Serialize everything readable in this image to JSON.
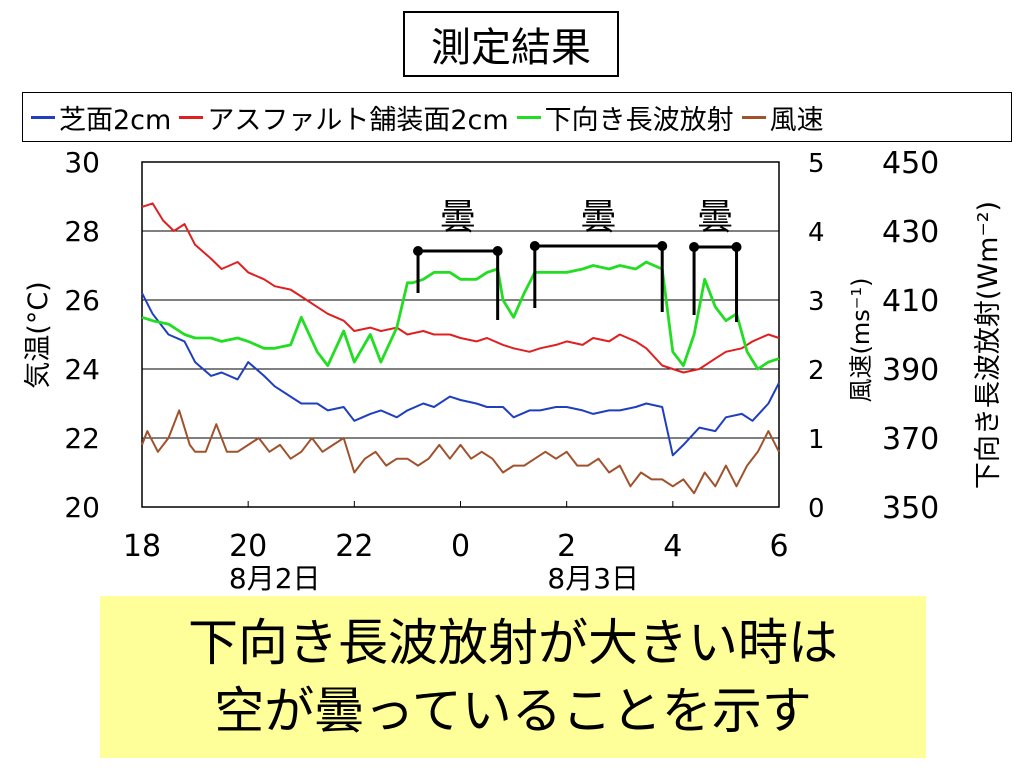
{
  "title": "測定結果",
  "legend": [
    {
      "label": "芝面2cm",
      "color": "#1f3fbf"
    },
    {
      "label": "アスファルト舗装面2cm",
      "color": "#e02020"
    },
    {
      "label": "下向き長波放射",
      "color": "#22dd22"
    },
    {
      "label": "風速",
      "color": "#a0522d"
    }
  ],
  "conclusion": {
    "line1": "下向き長波放射が大きい時は",
    "line2": "空が曇っていることを示す"
  },
  "chart_data": {
    "type": "line",
    "xlabel": "",
    "x_ticks": [
      "18",
      "20",
      "22",
      "0",
      "2",
      "4",
      "6"
    ],
    "date_labels": [
      {
        "label": "8月2日",
        "at": 20.5
      },
      {
        "label": "8月3日",
        "at": 26.5
      }
    ],
    "xlim": [
      18,
      30
    ],
    "y_left": {
      "label": "気温(°C)",
      "lim": [
        20,
        30
      ],
      "ticks": [
        "20",
        "22",
        "24",
        "26",
        "28",
        "30"
      ]
    },
    "y_wind": {
      "label": "風速(ms⁻¹)",
      "lim": [
        0,
        5
      ],
      "ticks": [
        "0",
        "1",
        "2",
        "3",
        "4",
        "5"
      ]
    },
    "y_rad": {
      "label": "下向き長波放射(Wm⁻²)",
      "lim": [
        350,
        450
      ],
      "ticks": [
        "350",
        "370",
        "390",
        "410",
        "430",
        "450"
      ]
    },
    "annotations": [
      {
        "label": "曇",
        "start": 23.2,
        "end": 24.7
      },
      {
        "label": "曇",
        "start": 25.4,
        "end": 27.8
      },
      {
        "label": "曇",
        "start": 28.4,
        "end": 29.2
      }
    ],
    "series": [
      {
        "name": "芝面2cm",
        "axis": "temp",
        "x": [
          18,
          18.2,
          18.5,
          18.8,
          19.0,
          19.3,
          19.5,
          19.8,
          20.0,
          20.3,
          20.5,
          20.8,
          21.0,
          21.3,
          21.5,
          21.8,
          22.0,
          22.3,
          22.5,
          22.8,
          23.0,
          23.3,
          23.5,
          23.8,
          24.0,
          24.3,
          24.5,
          24.8,
          25.0,
          25.3,
          25.5,
          25.8,
          26.0,
          26.3,
          26.5,
          26.8,
          27.0,
          27.3,
          27.5,
          27.8,
          28.0,
          28.2,
          28.5,
          28.8,
          29.0,
          29.3,
          29.5,
          29.8,
          30.0
        ],
        "y": [
          26.2,
          25.6,
          25.0,
          24.8,
          24.2,
          23.8,
          23.9,
          23.7,
          24.2,
          23.8,
          23.5,
          23.2,
          23.0,
          23.0,
          22.8,
          22.9,
          22.5,
          22.7,
          22.8,
          22.6,
          22.8,
          23.0,
          22.9,
          23.2,
          23.1,
          23.0,
          22.9,
          22.9,
          22.6,
          22.8,
          22.8,
          22.9,
          22.9,
          22.8,
          22.7,
          22.8,
          22.8,
          22.9,
          23.0,
          22.9,
          21.5,
          21.8,
          22.3,
          22.2,
          22.6,
          22.7,
          22.5,
          23.0,
          23.6
        ]
      },
      {
        "name": "アスファルト舗装面2cm",
        "axis": "temp",
        "x": [
          18,
          18.2,
          18.4,
          18.6,
          18.8,
          19.0,
          19.3,
          19.5,
          19.8,
          20.0,
          20.3,
          20.5,
          20.8,
          21.0,
          21.3,
          21.5,
          21.8,
          22.0,
          22.3,
          22.5,
          22.8,
          23.0,
          23.3,
          23.5,
          23.8,
          24.0,
          24.3,
          24.5,
          24.8,
          25.0,
          25.3,
          25.5,
          25.8,
          26.0,
          26.3,
          26.5,
          26.8,
          27.0,
          27.3,
          27.5,
          27.8,
          28.0,
          28.2,
          28.5,
          28.8,
          29.0,
          29.3,
          29.5,
          29.8,
          30.0
        ],
        "y": [
          28.7,
          28.8,
          28.3,
          28.0,
          28.2,
          27.6,
          27.2,
          26.9,
          27.1,
          26.8,
          26.6,
          26.4,
          26.3,
          26.1,
          25.8,
          25.6,
          25.4,
          25.1,
          25.2,
          25.1,
          25.2,
          25.0,
          25.1,
          25.0,
          25.0,
          24.9,
          24.8,
          24.9,
          24.7,
          24.6,
          24.5,
          24.6,
          24.7,
          24.8,
          24.7,
          24.9,
          24.8,
          25.0,
          24.8,
          24.6,
          24.1,
          24.0,
          23.9,
          24.0,
          24.3,
          24.5,
          24.6,
          24.8,
          25.0,
          24.9
        ]
      },
      {
        "name": "下向き長波放射",
        "axis": "rad",
        "x": [
          18,
          18.2,
          18.5,
          18.8,
          19.0,
          19.3,
          19.5,
          19.8,
          20.0,
          20.3,
          20.5,
          20.8,
          21.0,
          21.3,
          21.5,
          21.8,
          22.0,
          22.3,
          22.5,
          22.8,
          23.0,
          23.1,
          23.3,
          23.5,
          23.8,
          24.0,
          24.3,
          24.5,
          24.7,
          24.8,
          25.0,
          25.2,
          25.4,
          25.6,
          25.8,
          26.0,
          26.3,
          26.5,
          26.8,
          27.0,
          27.3,
          27.5,
          27.8,
          28.0,
          28.2,
          28.4,
          28.6,
          28.8,
          29.0,
          29.2,
          29.4,
          29.6,
          29.8,
          30.0
        ],
        "y": [
          405,
          404,
          403,
          400,
          399,
          399,
          398,
          399,
          398,
          396,
          396,
          397,
          405,
          395,
          391,
          401,
          392,
          400,
          392,
          402,
          415,
          415,
          416,
          418,
          418,
          416,
          416,
          418,
          419,
          410,
          405,
          412,
          418,
          418,
          418,
          418,
          419,
          420,
          419,
          420,
          419,
          421,
          419,
          395,
          391,
          400,
          416,
          408,
          404,
          406,
          395,
          390,
          392,
          393
        ]
      },
      {
        "name": "風速",
        "axis": "wind",
        "x": [
          18,
          18.1,
          18.3,
          18.5,
          18.7,
          18.9,
          19.0,
          19.2,
          19.4,
          19.6,
          19.8,
          20.0,
          20.2,
          20.4,
          20.6,
          20.8,
          21.0,
          21.2,
          21.4,
          21.6,
          21.8,
          22.0,
          22.2,
          22.4,
          22.6,
          22.8,
          23.0,
          23.2,
          23.4,
          23.6,
          23.8,
          24.0,
          24.2,
          24.4,
          24.6,
          24.8,
          25.0,
          25.2,
          25.4,
          25.6,
          25.8,
          26.0,
          26.2,
          26.4,
          26.6,
          26.8,
          27.0,
          27.2,
          27.4,
          27.6,
          27.8,
          28.0,
          28.2,
          28.4,
          28.6,
          28.8,
          29.0,
          29.2,
          29.4,
          29.6,
          29.8,
          30.0
        ],
        "y": [
          0.9,
          1.1,
          0.8,
          1.0,
          1.4,
          0.9,
          0.8,
          0.8,
          1.2,
          0.8,
          0.8,
          0.9,
          1.0,
          0.8,
          0.9,
          0.7,
          0.8,
          1.0,
          0.8,
          0.9,
          1.0,
          0.5,
          0.7,
          0.8,
          0.6,
          0.7,
          0.7,
          0.6,
          0.7,
          0.9,
          0.7,
          0.9,
          0.7,
          0.8,
          0.7,
          0.5,
          0.6,
          0.6,
          0.7,
          0.8,
          0.7,
          0.8,
          0.6,
          0.6,
          0.7,
          0.5,
          0.6,
          0.3,
          0.5,
          0.4,
          0.4,
          0.3,
          0.4,
          0.2,
          0.5,
          0.3,
          0.6,
          0.3,
          0.6,
          0.8,
          1.1,
          0.8
        ]
      }
    ]
  }
}
